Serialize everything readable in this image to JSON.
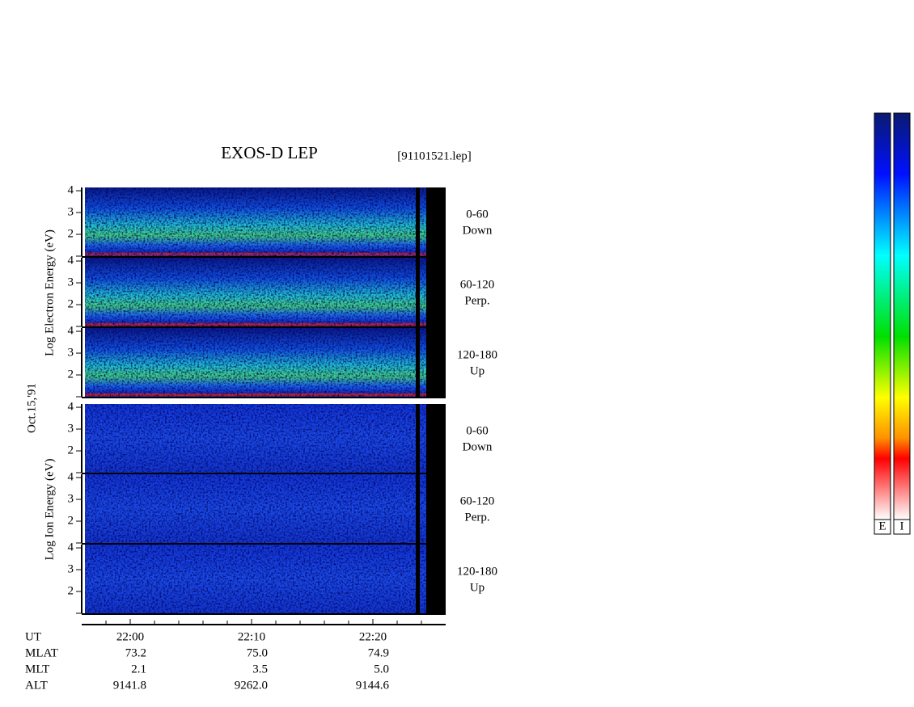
{
  "chart_data": {
    "type": "spectrogram",
    "title": "EXOS-D LEP",
    "file": "[91101521.lep]",
    "date": "Oct.15,'91",
    "ylim": [
      1,
      4.15
    ],
    "yticks": [
      2,
      3,
      4
    ],
    "xlim": [
      "21:56",
      "22:26"
    ],
    "xticks": [
      "22:00",
      "22:10",
      "22:20"
    ],
    "xminor_ticks": [
      "21:58",
      "22:02",
      "22:04",
      "22:06",
      "22:08",
      "22:12",
      "22:14",
      "22:16",
      "22:18",
      "22:22",
      "22:24"
    ],
    "groups": [
      {
        "ylabel": "Log   Electron   Energy (eV)",
        "kind": "electron",
        "panels": [
          {
            "label": [
              "0-60",
              "Down"
            ]
          },
          {
            "label": [
              "60-120",
              "Perp."
            ]
          },
          {
            "label": [
              "120-180",
              "Up"
            ]
          }
        ]
      },
      {
        "ylabel": "Log   Ion   Energy (eV)",
        "kind": "ion",
        "panels": [
          {
            "label": [
              "0-60",
              "Down"
            ]
          },
          {
            "label": [
              "60-120",
              "Perp."
            ]
          },
          {
            "label": [
              "120-180",
              "Up"
            ]
          }
        ]
      }
    ],
    "ephemeris": [
      {
        "name": "UT",
        "values": []
      },
      {
        "name": "MLAT",
        "values": [
          "73.2",
          "75.0",
          "74.9"
        ]
      },
      {
        "name": "MLT",
        "values": [
          "2.1",
          "3.5",
          "5.0"
        ]
      },
      {
        "name": "ALT",
        "values": [
          "9141.8",
          "9262.0",
          "9144.6"
        ]
      }
    ],
    "colorbars": [
      "E",
      "I"
    ]
  }
}
